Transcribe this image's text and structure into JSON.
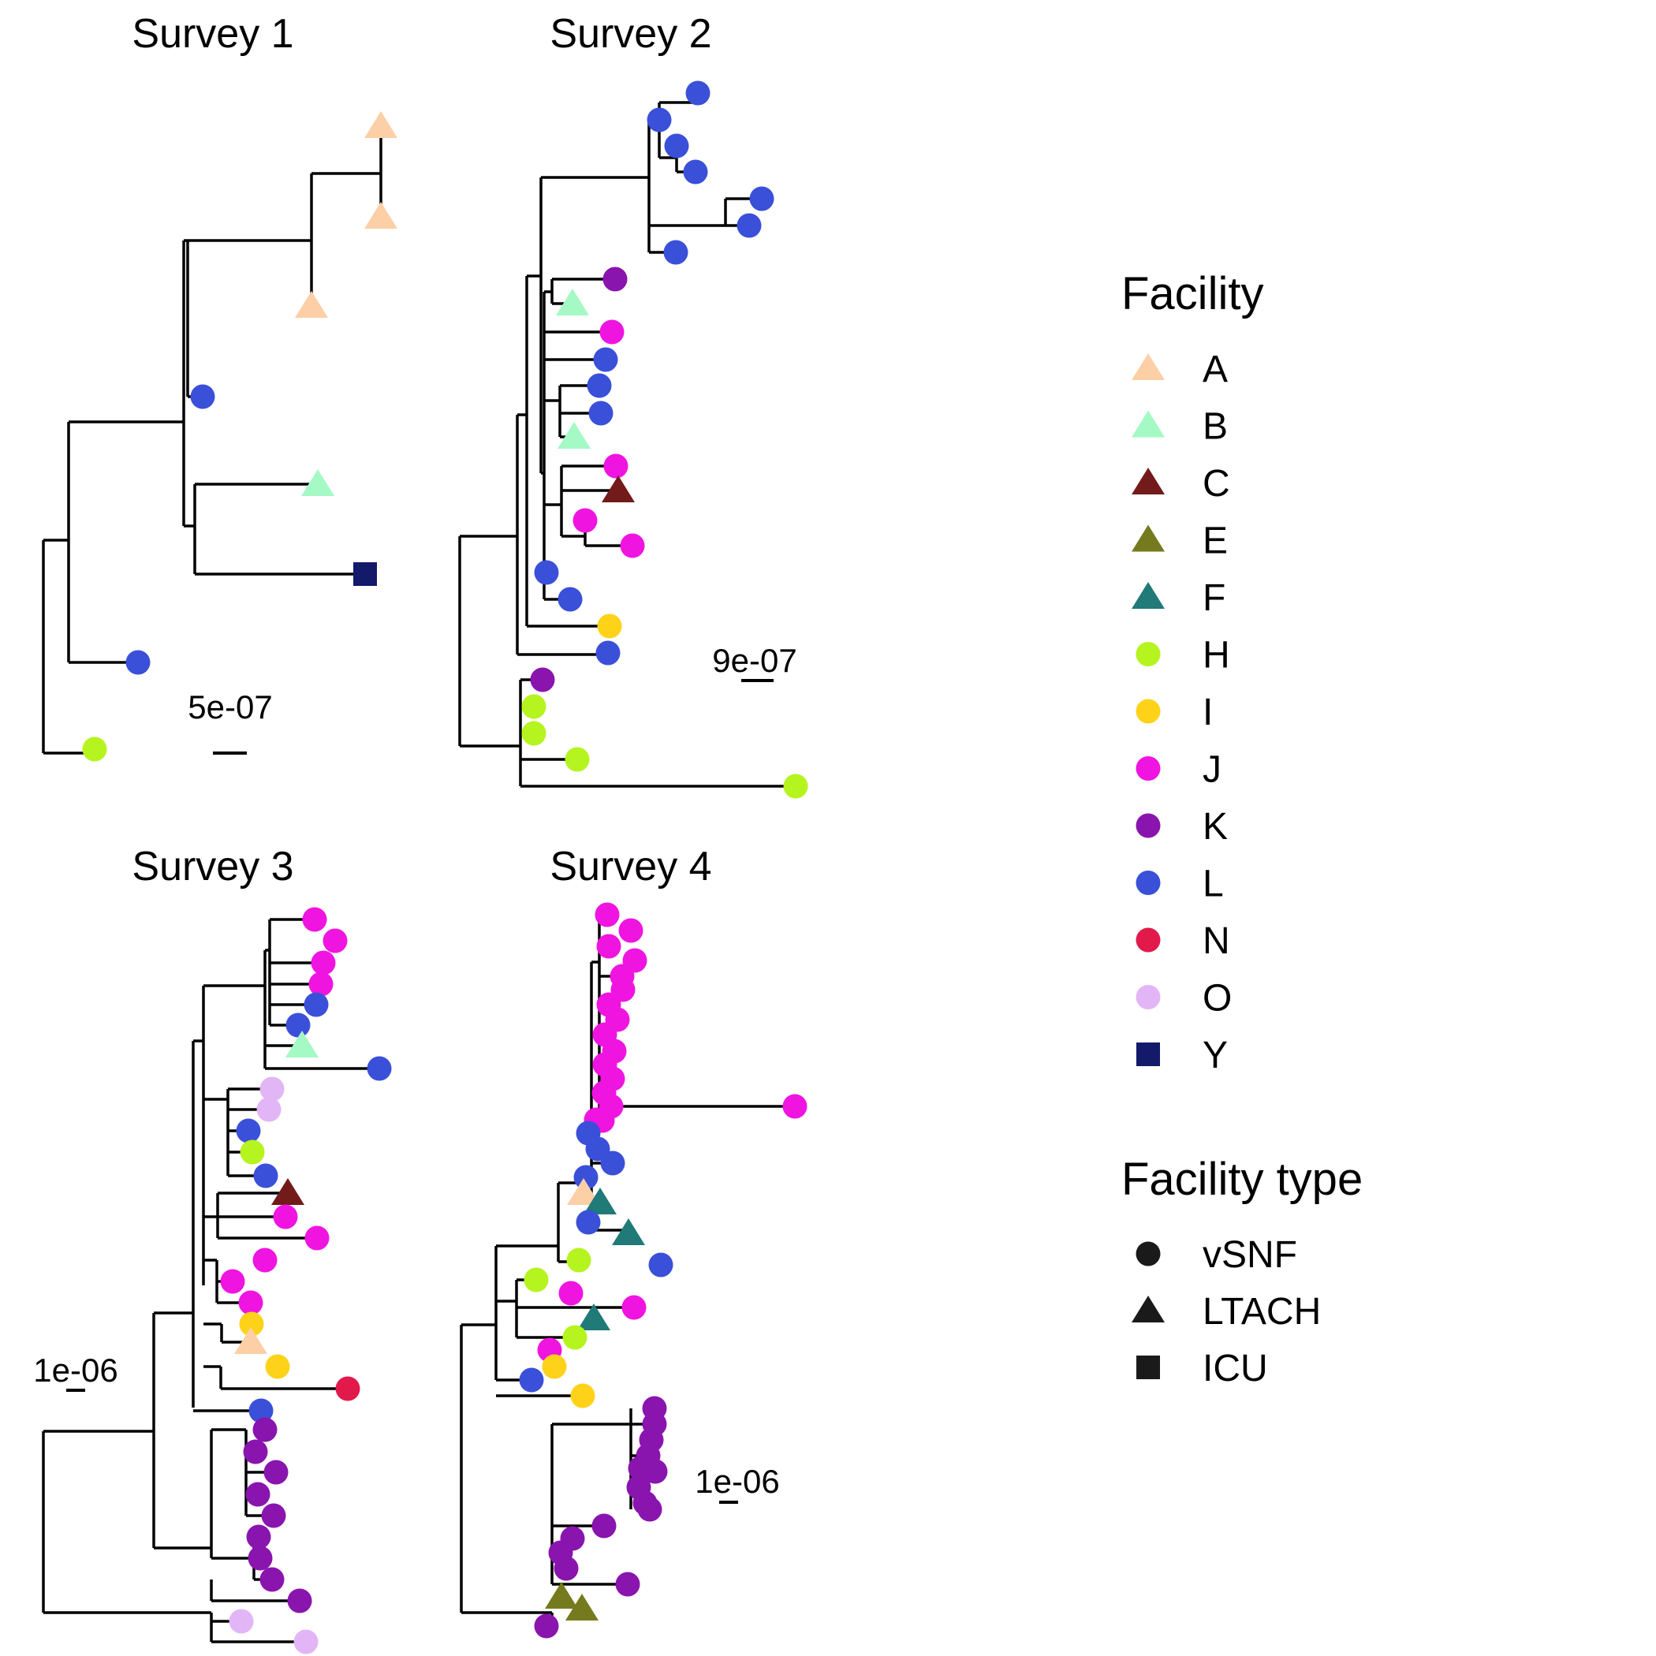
{
  "panels": [
    {
      "id": "survey1",
      "title": "Survey 1",
      "scale_label": "5e-07",
      "tips": [
        {
          "f": "A",
          "t": "LTACH"
        },
        {
          "f": "A",
          "t": "LTACH"
        },
        {
          "f": "A",
          "t": "LTACH"
        },
        {
          "f": "L",
          "t": "vSNF"
        },
        {
          "f": "B",
          "t": "LTACH"
        },
        {
          "f": "Y",
          "t": "ICU"
        },
        {
          "f": "L",
          "t": "vSNF"
        },
        {
          "f": "H",
          "t": "vSNF"
        }
      ]
    },
    {
      "id": "survey2",
      "title": "Survey 2",
      "scale_label": "9e-07",
      "tips": [
        {
          "f": "L",
          "t": "vSNF"
        },
        {
          "f": "L",
          "t": "vSNF"
        },
        {
          "f": "L",
          "t": "vSNF"
        },
        {
          "f": "L",
          "t": "vSNF"
        },
        {
          "f": "L",
          "t": "vSNF"
        },
        {
          "f": "L",
          "t": "vSNF"
        },
        {
          "f": "L",
          "t": "vSNF"
        },
        {
          "f": "K",
          "t": "vSNF"
        },
        {
          "f": "B",
          "t": "LTACH"
        },
        {
          "f": "J",
          "t": "vSNF"
        },
        {
          "f": "L",
          "t": "vSNF"
        },
        {
          "f": "L",
          "t": "vSNF"
        },
        {
          "f": "L",
          "t": "vSNF"
        },
        {
          "f": "B",
          "t": "LTACH"
        },
        {
          "f": "J",
          "t": "vSNF"
        },
        {
          "f": "C",
          "t": "LTACH"
        },
        {
          "f": "J",
          "t": "vSNF"
        },
        {
          "f": "J",
          "t": "vSNF"
        },
        {
          "f": "L",
          "t": "vSNF"
        },
        {
          "f": "L",
          "t": "vSNF"
        },
        {
          "f": "I",
          "t": "vSNF"
        },
        {
          "f": "L",
          "t": "vSNF"
        },
        {
          "f": "K",
          "t": "vSNF"
        },
        {
          "f": "H",
          "t": "vSNF"
        },
        {
          "f": "H",
          "t": "vSNF"
        },
        {
          "f": "H",
          "t": "vSNF"
        },
        {
          "f": "H",
          "t": "vSNF"
        }
      ]
    },
    {
      "id": "survey3",
      "title": "Survey 3",
      "scale_label": "1e-06",
      "tips": [
        {
          "f": "J",
          "t": "vSNF"
        },
        {
          "f": "J",
          "t": "vSNF"
        },
        {
          "f": "J",
          "t": "vSNF"
        },
        {
          "f": "J",
          "t": "vSNF"
        },
        {
          "f": "L",
          "t": "vSNF"
        },
        {
          "f": "L",
          "t": "vSNF"
        },
        {
          "f": "B",
          "t": "LTACH"
        },
        {
          "f": "L",
          "t": "vSNF"
        },
        {
          "f": "O",
          "t": "vSNF"
        },
        {
          "f": "O",
          "t": "vSNF"
        },
        {
          "f": "L",
          "t": "vSNF"
        },
        {
          "f": "H",
          "t": "vSNF"
        },
        {
          "f": "L",
          "t": "vSNF"
        },
        {
          "f": "C",
          "t": "LTACH"
        },
        {
          "f": "J",
          "t": "vSNF"
        },
        {
          "f": "J",
          "t": "vSNF"
        },
        {
          "f": "J",
          "t": "vSNF"
        },
        {
          "f": "J",
          "t": "vSNF"
        },
        {
          "f": "J",
          "t": "vSNF"
        },
        {
          "f": "I",
          "t": "vSNF"
        },
        {
          "f": "A",
          "t": "LTACH"
        },
        {
          "f": "I",
          "t": "vSNF"
        },
        {
          "f": "N",
          "t": "vSNF"
        },
        {
          "f": "L",
          "t": "vSNF"
        },
        {
          "f": "K",
          "t": "vSNF"
        },
        {
          "f": "K",
          "t": "vSNF"
        },
        {
          "f": "K",
          "t": "vSNF"
        },
        {
          "f": "K",
          "t": "vSNF"
        },
        {
          "f": "K",
          "t": "vSNF"
        },
        {
          "f": "K",
          "t": "vSNF"
        },
        {
          "f": "K",
          "t": "vSNF"
        },
        {
          "f": "K",
          "t": "vSNF"
        },
        {
          "f": "K",
          "t": "vSNF"
        },
        {
          "f": "O",
          "t": "vSNF"
        },
        {
          "f": "O",
          "t": "vSNF"
        }
      ]
    },
    {
      "id": "survey4",
      "title": "Survey 4",
      "scale_label": "1e-06",
      "tips": [
        {
          "f": "J",
          "t": "vSNF"
        },
        {
          "f": "J",
          "t": "vSNF"
        },
        {
          "f": "J",
          "t": "vSNF"
        },
        {
          "f": "J",
          "t": "vSNF"
        },
        {
          "f": "J",
          "t": "vSNF"
        },
        {
          "f": "J",
          "t": "vSNF"
        },
        {
          "f": "J",
          "t": "vSNF"
        },
        {
          "f": "J",
          "t": "vSNF"
        },
        {
          "f": "J",
          "t": "vSNF"
        },
        {
          "f": "J",
          "t": "vSNF"
        },
        {
          "f": "J",
          "t": "vSNF"
        },
        {
          "f": "J",
          "t": "vSNF"
        },
        {
          "f": "J",
          "t": "vSNF"
        },
        {
          "f": "J",
          "t": "vSNF"
        },
        {
          "f": "J",
          "t": "vSNF"
        },
        {
          "f": "J",
          "t": "vSNF"
        },
        {
          "f": "J",
          "t": "vSNF"
        },
        {
          "f": "L",
          "t": "vSNF"
        },
        {
          "f": "L",
          "t": "vSNF"
        },
        {
          "f": "L",
          "t": "vSNF"
        },
        {
          "f": "L",
          "t": "vSNF"
        },
        {
          "f": "A",
          "t": "LTACH"
        },
        {
          "f": "F",
          "t": "LTACH"
        },
        {
          "f": "L",
          "t": "vSNF"
        },
        {
          "f": "F",
          "t": "LTACH"
        },
        {
          "f": "H",
          "t": "vSNF"
        },
        {
          "f": "L",
          "t": "vSNF"
        },
        {
          "f": "H",
          "t": "vSNF"
        },
        {
          "f": "J",
          "t": "vSNF"
        },
        {
          "f": "J",
          "t": "vSNF"
        },
        {
          "f": "F",
          "t": "LTACH"
        },
        {
          "f": "H",
          "t": "vSNF"
        },
        {
          "f": "J",
          "t": "vSNF"
        },
        {
          "f": "I",
          "t": "vSNF"
        },
        {
          "f": "L",
          "t": "vSNF"
        },
        {
          "f": "I",
          "t": "vSNF"
        },
        {
          "f": "K",
          "t": "vSNF"
        },
        {
          "f": "K",
          "t": "vSNF"
        },
        {
          "f": "K",
          "t": "vSNF"
        },
        {
          "f": "K",
          "t": "vSNF"
        },
        {
          "f": "K",
          "t": "vSNF"
        },
        {
          "f": "K",
          "t": "vSNF"
        },
        {
          "f": "K",
          "t": "vSNF"
        },
        {
          "f": "K",
          "t": "vSNF"
        },
        {
          "f": "K",
          "t": "vSNF"
        },
        {
          "f": "K",
          "t": "vSNF"
        },
        {
          "f": "K",
          "t": "vSNF"
        },
        {
          "f": "K",
          "t": "vSNF"
        },
        {
          "f": "K",
          "t": "vSNF"
        },
        {
          "f": "K",
          "t": "vSNF"
        },
        {
          "f": "E",
          "t": "LTACH"
        },
        {
          "f": "E",
          "t": "LTACH"
        },
        {
          "f": "K",
          "t": "vSNF"
        }
      ]
    }
  ],
  "legend": {
    "facility_title": "Facility",
    "facilities": [
      {
        "key": "A",
        "label": "A",
        "color": "#FDCFA6",
        "shape": "triangle"
      },
      {
        "key": "B",
        "label": "B",
        "color": "#A5F9C5",
        "shape": "triangle"
      },
      {
        "key": "C",
        "label": "C",
        "color": "#731A1A",
        "shape": "triangle"
      },
      {
        "key": "E",
        "label": "E",
        "color": "#767A1E",
        "shape": "triangle"
      },
      {
        "key": "F",
        "label": "F",
        "color": "#1F7A78",
        "shape": "triangle"
      },
      {
        "key": "H",
        "label": "H",
        "color": "#B5F41E",
        "shape": "circle"
      },
      {
        "key": "I",
        "label": "I",
        "color": "#FFD21A",
        "shape": "circle"
      },
      {
        "key": "J",
        "label": "J",
        "color": "#F014E1",
        "shape": "circle"
      },
      {
        "key": "K",
        "label": "K",
        "color": "#8A14AE",
        "shape": "circle"
      },
      {
        "key": "L",
        "label": "L",
        "color": "#3A50D8",
        "shape": "circle"
      },
      {
        "key": "N",
        "label": "N",
        "color": "#E21A4C",
        "shape": "circle"
      },
      {
        "key": "O",
        "label": "O",
        "color": "#E2B5F7",
        "shape": "circle"
      },
      {
        "key": "Y",
        "label": "Y",
        "color": "#141A6A",
        "shape": "square"
      }
    ],
    "type_title": "Facility type",
    "types": [
      {
        "key": "vSNF",
        "label": "vSNF",
        "shape": "circle"
      },
      {
        "key": "LTACH",
        "label": "LTACH",
        "shape": "triangle"
      },
      {
        "key": "ICU",
        "label": "ICU",
        "shape": "square"
      }
    ]
  }
}
